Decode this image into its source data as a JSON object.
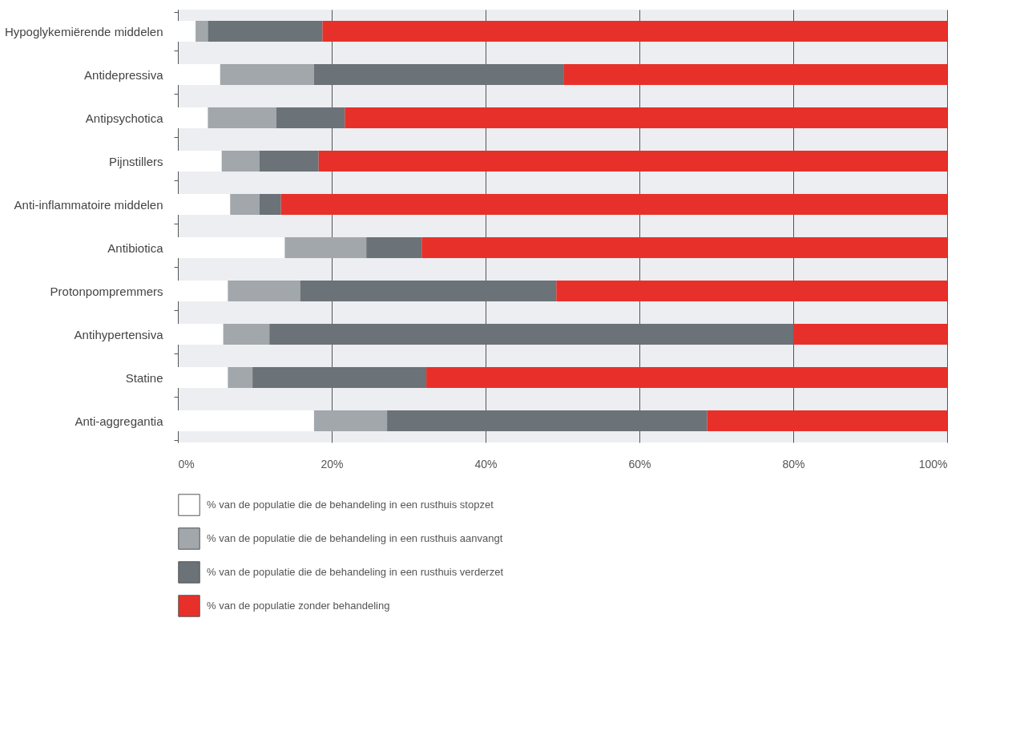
{
  "chart_data": {
    "type": "bar",
    "orientation": "horizontal",
    "stacked": true,
    "categories": [
      "Hypoglykemiërende middelen",
      "Antidepressiva",
      "Antipsychotica",
      "Pijnstillers",
      "Anti-inflammatoire middelen",
      "Antibiotica",
      "Protonpompremmers",
      "Antihypertensiva",
      "Statine",
      "Anti-aggregantia"
    ],
    "series": [
      {
        "name": "% van de populatie die de behandeling in een rusthuis stopzet",
        "color": "#ffffff",
        "values": [
          2.3,
          5.5,
          3.9,
          5.7,
          6.8,
          13.9,
          6.5,
          5.9,
          6.5,
          17.7
        ]
      },
      {
        "name": "% van de populatie die de behandeling in een rusthuis aanvangt",
        "color": "#a2a7ab",
        "values": [
          1.6,
          12.2,
          8.9,
          4.9,
          3.8,
          10.6,
          9.4,
          6.0,
          3.2,
          9.5
        ]
      },
      {
        "name": "% van de populatie die de behandeling in een rusthuis verderzet",
        "color": "#6b7278",
        "values": [
          14.9,
          32.5,
          8.9,
          7.7,
          2.8,
          7.2,
          33.3,
          68.1,
          22.6,
          41.6
        ]
      },
      {
        "name": "% van de populatie zonder behandeling",
        "color": "#e8302a",
        "values": [
          81.2,
          49.8,
          78.3,
          81.7,
          86.6,
          68.3,
          50.8,
          20.0,
          67.7,
          31.2
        ]
      }
    ],
    "xlim": [
      0,
      100
    ],
    "xticks": [
      {
        "value": 0,
        "label": "0%"
      },
      {
        "value": 20,
        "label": "20%"
      },
      {
        "value": 40,
        "label": "40%"
      },
      {
        "value": 60,
        "label": "60%"
      },
      {
        "value": 80,
        "label": "80%"
      },
      {
        "value": 100,
        "label": "100%"
      }
    ],
    "grid": "x",
    "legend": "bottom"
  }
}
